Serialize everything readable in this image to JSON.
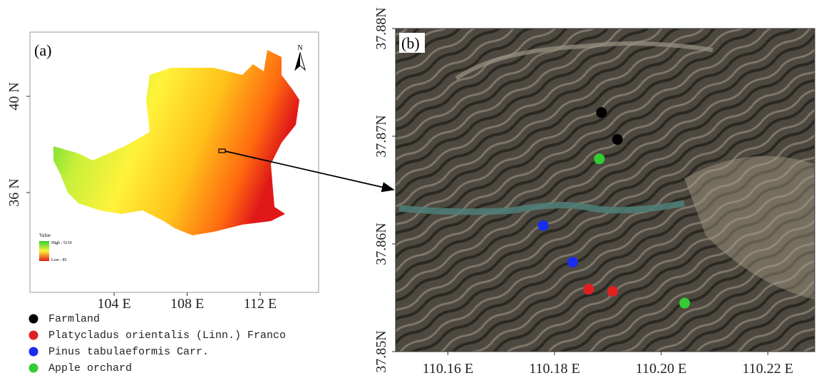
{
  "panel_a": {
    "label": "(a)",
    "north": "N",
    "xlim": [
      99.39,
      115.2
    ],
    "ylim": [
      31.85,
      42.67
    ],
    "xticks": [
      {
        "value": 104,
        "label": "104 E"
      },
      {
        "value": 108,
        "label": "108 E"
      },
      {
        "value": 112,
        "label": "112 E"
      }
    ],
    "yticks": [
      {
        "value": 36,
        "label": "36 N"
      },
      {
        "value": 40,
        "label": "40 N"
      }
    ],
    "legend": {
      "title": "Value",
      "high": "High : 5210",
      "low": "Low : 85"
    }
  },
  "panel_b": {
    "type": "scatter",
    "label": "(b)",
    "xlim": [
      110.1502,
      110.2288
    ],
    "ylim": [
      37.85,
      37.88
    ],
    "xticks": [
      {
        "value": 110.16,
        "label": "110.16 E"
      },
      {
        "value": 110.18,
        "label": "110.18 E"
      },
      {
        "value": 110.2,
        "label": "110.20 E"
      },
      {
        "value": 110.22,
        "label": "110.22 E"
      }
    ],
    "yticks": [
      {
        "value": 37.85,
        "label": "37.85N"
      },
      {
        "value": 37.86,
        "label": "37.86N"
      },
      {
        "value": 37.87,
        "label": "37.87N"
      },
      {
        "value": 37.88,
        "label": "37.88N"
      }
    ],
    "series": [
      {
        "name": "Farmland",
        "color": "#000000",
        "x": [
          110.1888,
          110.1918
        ],
        "y": [
          37.8722,
          37.8697
        ]
      },
      {
        "name": "Platycladus orientalis (Linn.) Franco",
        "color": "#e02020",
        "x": [
          110.1864,
          110.1909
        ],
        "y": [
          37.8558,
          37.8556
        ]
      },
      {
        "name": "Pinus tabulaeformis Carr.",
        "color": "#1a2cf0",
        "x": [
          110.1779,
          110.1834
        ],
        "y": [
          37.8617,
          37.8583
        ]
      },
      {
        "name": "Apple orchard",
        "color": "#33cc33",
        "x": [
          110.1884,
          110.2044
        ],
        "y": [
          37.8679,
          37.8545
        ]
      }
    ]
  }
}
